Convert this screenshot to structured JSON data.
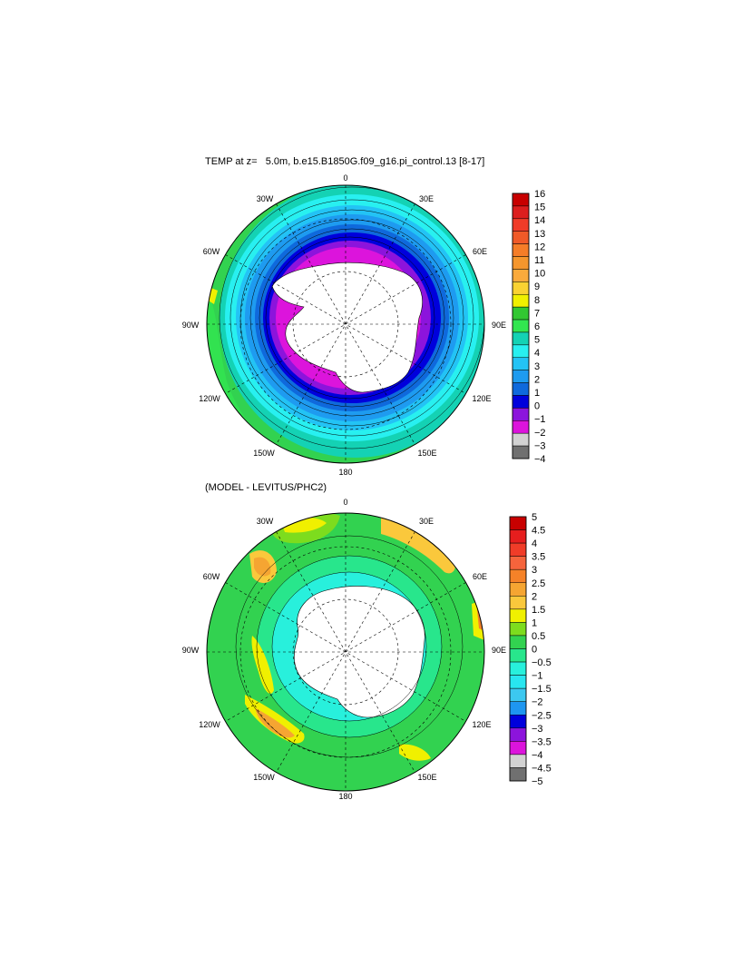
{
  "panels": [
    {
      "title": "TEMP at z=   5.0m, b.e15.B1850G.f09_g16.pi_control.13 [8-17]",
      "lon_labels": {
        "top": "0",
        "top_left": "30W",
        "top_right": "30E",
        "left_upper": "60W",
        "right_upper": "60E",
        "left": "90W",
        "right": "90E",
        "left_lower": "120W",
        "right_lower": "120E",
        "bottom_left": "150W",
        "bottom_right": "150E",
        "bottom": "180"
      },
      "colorbar": {
        "labels": [
          "16",
          "15",
          "14",
          "13",
          "12",
          "11",
          "10",
          "9",
          "8",
          "7",
          "6",
          "5",
          "4",
          "3",
          "2",
          "1",
          "0",
          "−1",
          "−2",
          "−3",
          "−4"
        ],
        "colors": [
          "#c80000",
          "#dc1e1e",
          "#f03c28",
          "#f05a28",
          "#f57d28",
          "#f5962d",
          "#faaa3c",
          "#fad232",
          "#f0f000",
          "#32c832",
          "#32e650",
          "#14d2b4",
          "#28f0f0",
          "#23c3f5",
          "#1e9bf0",
          "#0f69dc",
          "#0000dc",
          "#8c14dc",
          "#dc14dc",
          "#d2d2d2",
          "#707070"
        ]
      }
    },
    {
      "title": "(MODEL - LEVITUS/PHC2)",
      "lon_labels": {
        "top": "0",
        "top_left": "30W",
        "top_right": "30E",
        "left_upper": "60W",
        "right_upper": "60E",
        "left": "90W",
        "right": "90E",
        "left_lower": "120W",
        "right_lower": "120E",
        "bottom_left": "150W",
        "bottom_right": "150E",
        "bottom": "180"
      },
      "colorbar": {
        "labels": [
          "5",
          "4.5",
          "4",
          "3.5",
          "3",
          "2.5",
          "2",
          "1.5",
          "1",
          "0.5",
          "0",
          "−0.5",
          "−1",
          "−1.5",
          "−2",
          "−2.5",
          "−3",
          "−3.5",
          "−4",
          "−4.5",
          "−5"
        ],
        "colors": [
          "#c80000",
          "#e61e1e",
          "#f03c28",
          "#f5643c",
          "#f58228",
          "#f5a532",
          "#fac83c",
          "#f0f000",
          "#7ddc1e",
          "#32d250",
          "#28e68c",
          "#28f0dc",
          "#28e6f0",
          "#3cc8f0",
          "#1e96f0",
          "#0000dc",
          "#8c14dc",
          "#dc14dc",
          "#d2d2d2",
          "#707070"
        ]
      }
    }
  ]
}
